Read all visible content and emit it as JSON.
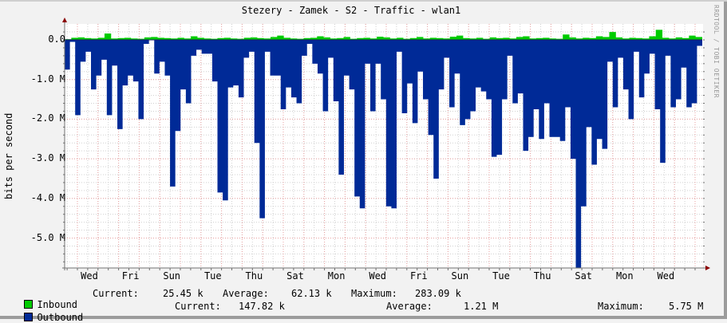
{
  "title": "Stezery - Zamek - S2 - Traffic - wlan1",
  "vendor_label": "RRDTOOL / TOBI OETIKER",
  "colors": {
    "inbound": "#00cc00",
    "outbound": "#002a97",
    "grid_major": "#e8a0a0",
    "grid_minor": "#d0d0d0",
    "axis": "#707070",
    "arrow": "#8b0000",
    "background": "#f2f2f2",
    "plot_background": "#ffffff"
  },
  "chart_data": {
    "type": "area",
    "title": "Stezery - Zamek - S2 - Traffic - wlan1",
    "xlabel": "",
    "ylabel": "bits per second",
    "ylim": [
      -5750000,
      300000
    ],
    "y_ticks": [
      "0.0",
      "-1.0 M",
      "-2.0 M",
      "-3.0 M",
      "-4.0 M",
      "-5.0 M"
    ],
    "y_tick_values": [
      0,
      -1000000,
      -2000000,
      -3000000,
      -4000000,
      -5000000
    ],
    "x_ticks": [
      "Wed",
      "Fri",
      "Sun",
      "Tue",
      "Thu",
      "Sat",
      "Mon",
      "Wed",
      "Fri",
      "Sun",
      "Tue",
      "Thu",
      "Sat",
      "Mon",
      "Wed"
    ],
    "grid": true,
    "legend_position": "bottom",
    "series": [
      {
        "name": "Inbound",
        "color": "#00cc00",
        "direction": "positive",
        "note": "small positive spikes, 0–283 kbps",
        "values_kbps_approx": [
          20,
          60,
          70,
          50,
          40,
          60,
          180,
          40,
          50,
          60,
          40,
          30,
          70,
          80,
          60,
          50,
          40,
          60,
          40,
          100,
          60,
          40,
          30,
          50,
          60,
          40,
          30,
          60,
          70,
          50,
          40,
          80,
          120,
          60,
          40,
          30,
          50,
          60,
          100,
          70,
          40,
          50,
          80,
          30,
          50,
          60,
          40,
          90,
          70,
          40,
          60,
          30,
          50,
          80,
          40,
          60,
          50,
          40,
          90,
          120,
          50,
          40,
          60,
          30,
          70,
          50,
          60,
          40,
          80,
          100,
          40,
          50,
          60,
          40,
          30,
          150,
          70,
          40,
          60,
          50,
          100,
          80,
          220,
          70,
          40,
          60,
          50,
          40,
          100,
          283,
          60,
          40,
          70,
          50,
          120,
          80
        ]
      },
      {
        "name": "Outbound",
        "color": "#002a97",
        "direction": "negative",
        "note": "plotted downward (negative), peaks up to 5.75 Mbps",
        "values_mbps_approx": [
          0.75,
          0.05,
          1.9,
          0.55,
          0.3,
          1.25,
          0.9,
          0.5,
          1.9,
          0.65,
          2.25,
          1.15,
          0.9,
          1.05,
          2.0,
          0.1,
          0.0,
          0.85,
          0.55,
          0.9,
          3.7,
          2.3,
          1.25,
          1.6,
          0.4,
          0.25,
          0.35,
          0.35,
          1.05,
          3.85,
          4.05,
          1.2,
          1.15,
          1.45,
          0.45,
          0.3,
          2.6,
          4.5,
          0.3,
          0.9,
          0.9,
          1.75,
          1.2,
          1.45,
          1.6,
          0.4,
          0.1,
          0.6,
          0.85,
          1.8,
          0.45,
          1.55,
          3.4,
          0.9,
          1.25,
          3.95,
          4.25,
          0.6,
          1.8,
          0.6,
          1.5,
          4.2,
          4.25,
          0.3,
          1.85,
          1.1,
          2.1,
          0.8,
          1.5,
          2.4,
          3.5,
          1.25,
          0.45,
          1.7,
          0.85,
          2.15,
          2.0,
          1.8,
          1.2,
          1.3,
          1.5,
          2.95,
          2.9,
          1.5,
          0.4,
          1.6,
          1.35,
          2.8,
          2.45,
          1.75,
          2.5,
          1.6,
          2.45,
          2.45,
          2.55,
          1.7,
          3.0,
          5.75,
          4.2,
          2.2,
          3.15,
          2.5,
          2.75,
          0.55,
          1.7,
          0.45,
          1.25,
          2.0,
          0.3,
          1.45,
          0.85,
          0.35,
          1.75,
          3.1,
          0.4,
          1.7,
          1.5,
          0.7,
          1.7,
          1.6,
          0.15
        ]
      }
    ],
    "legend": [
      {
        "name": "Inbound",
        "current": "25.45 k",
        "average": "62.13 k",
        "maximum": "283.09 k"
      },
      {
        "name": "Outbound",
        "current": "147.82 k",
        "average": "1.21 M",
        "maximum": "5.75 M"
      }
    ]
  },
  "legend": {
    "inbound": {
      "label": "Inbound",
      "current_label": "Current:",
      "current": "25.45 k",
      "average_label": "Average:",
      "average": "62.13 k",
      "maximum_label": "Maximum:",
      "maximum": "283.09 k"
    },
    "outbound": {
      "label": "Outbound",
      "current_label": "Current:",
      "current": "147.82 k",
      "average_label": "Average:",
      "average": "1.21 M",
      "maximum_label": "Maximum:",
      "maximum": "5.75 M"
    }
  }
}
